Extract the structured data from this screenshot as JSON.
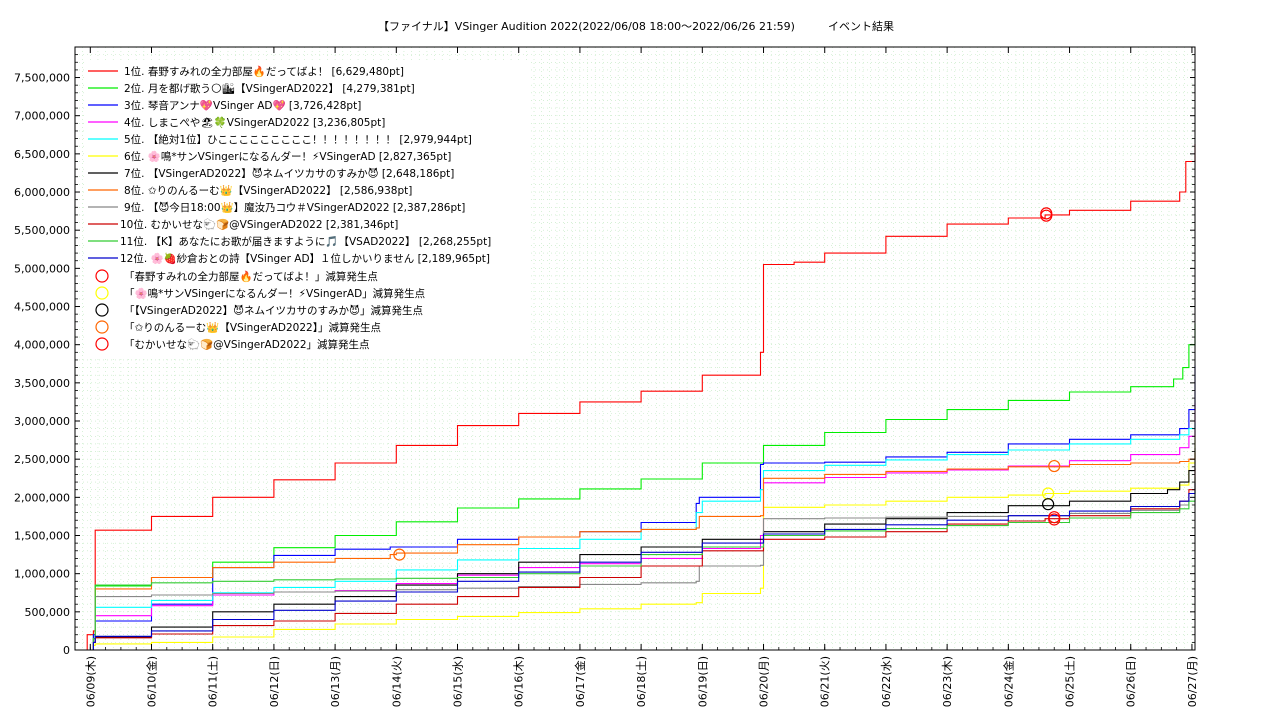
{
  "chart_data": {
    "type": "line",
    "title": "【ファイナル】VSinger Audition 2022(2022/06/08 18:00～2022/06/26 21:59)　　　イベント結果",
    "xlabel": "",
    "ylabel": "",
    "x_ticks": [
      "06/09(木)",
      "06/10(金)",
      "06/11(土)",
      "06/12(日)",
      "06/13(月)",
      "06/14(火)",
      "06/15(水)",
      "06/16(木)",
      "06/17(金)",
      "06/18(土)",
      "06/19(日)",
      "06/20(月)",
      "06/21(火)",
      "06/22(水)",
      "06/23(木)",
      "06/24(金)",
      "06/25(土)",
      "06/26(日)",
      "06/27(月)"
    ],
    "xlim": [
      -0.25,
      18.05
    ],
    "ylim": [
      0,
      7900000
    ],
    "y_ticks": [
      {
        "value": 0,
        "label": "0"
      },
      {
        "value": 500000,
        "label": "500,000"
      },
      {
        "value": 1000000,
        "label": "1,000,000"
      },
      {
        "value": 1500000,
        "label": "1,500,000"
      },
      {
        "value": 2000000,
        "label": "2,000,000"
      },
      {
        "value": 2500000,
        "label": "2,500,000"
      },
      {
        "value": 3000000,
        "label": "3,000,000"
      },
      {
        "value": 3500000,
        "label": "3,500,000"
      },
      {
        "value": 4000000,
        "label": "4,000,000"
      },
      {
        "value": 4500000,
        "label": "4,500,000"
      },
      {
        "value": 5000000,
        "label": "5,000,000"
      },
      {
        "value": 5500000,
        "label": "5,500,000"
      },
      {
        "value": 6000000,
        "label": "6,000,000"
      },
      {
        "value": 6500000,
        "label": "6,500,000"
      },
      {
        "value": 7000000,
        "label": "7,000,000"
      },
      {
        "value": 7500000,
        "label": "7,500,000"
      }
    ],
    "grid": true,
    "legend_position": "top-left",
    "series": [
      {
        "name": "1位. 春野すみれの全力部屋🔥だってばよ！ [6,629,480pt]",
        "color": "#ff0000",
        "x": [
          -0.25,
          -0.05,
          0.05,
          0.08,
          1,
          2,
          3,
          4,
          5,
          6,
          7,
          8,
          9,
          10,
          10.95,
          11.0,
          11.5,
          12,
          13,
          14,
          15,
          15.6,
          16,
          17,
          17.8,
          17.9,
          18.05
        ],
        "y": [
          0,
          200000,
          250000,
          1570000,
          1750000,
          2000000,
          2230000,
          2450000,
          2680000,
          2940000,
          3100000,
          3250000,
          3390000,
          3600000,
          3900000,
          5050000,
          5080000,
          5200000,
          5420000,
          5580000,
          5660000,
          5700000,
          5760000,
          5880000,
          6000000,
          6400000,
          6629480
        ]
      },
      {
        "name": "2位. 月を都げ歌う🌕🏙【VSingerAD2022】 [4,279,381pt]",
        "color": "#00ee00",
        "x": [
          -0.25,
          0.05,
          0.08,
          1,
          2,
          3,
          4,
          5,
          6,
          7,
          8,
          9,
          10,
          11,
          12,
          13,
          14,
          15,
          16,
          17,
          17.7,
          17.85,
          17.95,
          18.05
        ],
        "y": [
          0,
          200000,
          840000,
          950000,
          1150000,
          1340000,
          1500000,
          1680000,
          1860000,
          1980000,
          2110000,
          2240000,
          2450000,
          2680000,
          2850000,
          3020000,
          3150000,
          3270000,
          3380000,
          3450000,
          3550000,
          3700000,
          4000000,
          4279381
        ]
      },
      {
        "name": "3位. 琴音アンナ💖VSinger AD💖 [3,726,428pt]",
        "color": "#0000ff",
        "x": [
          -0.25,
          0.05,
          0.08,
          1,
          2,
          3,
          4,
          4.9,
          5,
          6,
          7,
          8,
          9,
          9.9,
          9.95,
          10.95,
          11.0,
          12,
          13,
          14,
          15,
          16,
          17,
          17.8,
          17.95,
          18.05
        ],
        "y": [
          0,
          200000,
          380000,
          600000,
          1080000,
          1240000,
          1320000,
          1350000,
          1350000,
          1450000,
          1480000,
          1550000,
          1670000,
          1920000,
          2000000,
          2430000,
          2450000,
          2460000,
          2530000,
          2590000,
          2700000,
          2760000,
          2820000,
          2900000,
          3150000,
          3726428
        ]
      },
      {
        "name": "4位. しまこぺや🏖🍀VSingerAD2022 [3,236,805pt]",
        "color": "#ff00ff",
        "x": [
          -0.25,
          0.05,
          0.08,
          1,
          2,
          3,
          4,
          5,
          6,
          7,
          8,
          9,
          10,
          10.95,
          11.0,
          12,
          13,
          14,
          15,
          16,
          17,
          17.8,
          17.95,
          18.05
        ],
        "y": [
          0,
          150000,
          450000,
          580000,
          720000,
          760000,
          780000,
          870000,
          980000,
          1080000,
          1130000,
          1200000,
          1330000,
          1500000,
          2190000,
          2260000,
          2320000,
          2360000,
          2410000,
          2480000,
          2560000,
          2650000,
          2800000,
          3236805
        ]
      },
      {
        "name": "5位. 【絶対1位】ひこここここここここ！！！！！！！！ [2,979,944pt]",
        "color": "#00ffff",
        "x": [
          -0.25,
          0.05,
          0.08,
          1,
          2,
          3,
          4,
          5,
          6,
          7,
          8,
          9,
          9.9,
          10.0,
          10.95,
          11.0,
          12,
          13,
          14,
          15,
          16,
          17,
          17.8,
          17.95,
          18.05
        ],
        "y": [
          0,
          150000,
          560000,
          650000,
          750000,
          820000,
          900000,
          1050000,
          1180000,
          1330000,
          1450000,
          1580000,
          1800000,
          1950000,
          2100000,
          2350000,
          2420000,
          2490000,
          2560000,
          2620000,
          2700000,
          2760000,
          2820000,
          2900000,
          2979944
        ]
      },
      {
        "name": "6位. 🌸鳴*サンVSingerになるんダー！⚡VSingerAD [2,827,365pt]",
        "color": "#ffff00",
        "x": [
          -0.25,
          0.05,
          0.08,
          1,
          2,
          3,
          4,
          5,
          6,
          7,
          8,
          9,
          9.9,
          10.0,
          10.95,
          11.0,
          12,
          13,
          14,
          15,
          15.6,
          16,
          17,
          17.8,
          17.95,
          18.05
        ],
        "y": [
          0,
          60000,
          80000,
          100000,
          170000,
          270000,
          340000,
          400000,
          440000,
          490000,
          540000,
          600000,
          620000,
          740000,
          810000,
          1870000,
          1900000,
          1950000,
          2000000,
          2030000,
          2050000,
          2080000,
          2120000,
          2160000,
          2450000,
          2827365
        ]
      },
      {
        "name": "7位. 【VSingerAD2022】😈ネムイツカサのすみか😈 [2,648,186pt]",
        "color": "#000000",
        "x": [
          -0.25,
          0.05,
          0.08,
          1,
          2,
          3,
          4,
          5,
          6,
          7,
          8,
          9,
          10,
          11,
          12,
          13,
          14,
          15,
          16,
          17,
          17.6,
          17.8,
          17.95,
          18.05
        ],
        "y": [
          0,
          100000,
          170000,
          300000,
          500000,
          600000,
          700000,
          850000,
          1000000,
          1150000,
          1250000,
          1350000,
          1450000,
          1550000,
          1650000,
          1720000,
          1800000,
          1890000,
          1950000,
          2050000,
          2100000,
          2200000,
          2350000,
          2648186
        ]
      },
      {
        "name": "8位. ✩りのんるーむ👑【VSingerAD2022】 [2,586,938pt]",
        "color": "#ff6600",
        "x": [
          -0.25,
          0.05,
          0.08,
          1,
          2,
          3,
          4,
          4.9,
          5,
          6,
          7,
          8,
          9,
          9.9,
          9.95,
          10.95,
          11.0,
          12,
          13,
          14,
          15,
          16,
          17,
          17.8,
          17.95,
          18.05
        ],
        "y": [
          0,
          150000,
          800000,
          950000,
          1080000,
          1150000,
          1200000,
          1250000,
          1270000,
          1380000,
          1480000,
          1550000,
          1580000,
          1600000,
          1750000,
          1760000,
          2250000,
          2300000,
          2340000,
          2370000,
          2400000,
          2430000,
          2450000,
          2470000,
          2500000,
          2586938
        ]
      },
      {
        "name": "9位. 【😈今日18:00👑】魔汝乃コウ＃VSingerAD2022 [2,387,286pt]",
        "color": "#888888",
        "x": [
          -0.25,
          0.05,
          0.08,
          1,
          2,
          3,
          4,
          5,
          6,
          7,
          8,
          9,
          9.9,
          9.95,
          10.95,
          11.0,
          12,
          13,
          14,
          15,
          16,
          17,
          17.8,
          17.95,
          18.05
        ],
        "y": [
          0,
          150000,
          700000,
          720000,
          740000,
          760000,
          770000,
          790000,
          810000,
          830000,
          860000,
          880000,
          900000,
          1100000,
          1110000,
          1720000,
          1730000,
          1740000,
          1750000,
          1760000,
          1790000,
          1830000,
          1900000,
          2050000,
          2387286
        ]
      },
      {
        "name": "10位. むかいせな🐑🍞@VSingerAD2022 [2,381,346pt]",
        "color": "#cc0000",
        "x": [
          -0.25,
          0.05,
          0.08,
          1,
          2,
          3,
          4,
          5,
          6,
          7,
          8,
          9,
          10,
          11,
          12,
          13,
          14,
          15,
          15.6,
          16,
          17,
          17.8,
          17.95,
          18.05
        ],
        "y": [
          0,
          100000,
          160000,
          210000,
          320000,
          380000,
          480000,
          600000,
          700000,
          820000,
          950000,
          1100000,
          1300000,
          1450000,
          1480000,
          1550000,
          1650000,
          1690000,
          1720000,
          1760000,
          1850000,
          1950000,
          2100000,
          2381346
        ]
      },
      {
        "name": "11位. 【K】あなたにお歌が届きますように🎵【VSAD2022】 [2,268,255pt]",
        "color": "#33cc33",
        "x": [
          -0.25,
          0.05,
          0.08,
          1,
          2,
          3,
          4,
          5,
          6,
          7,
          8,
          9,
          10,
          11,
          12,
          13,
          14,
          15,
          16,
          17,
          17.8,
          17.95,
          18.05
        ],
        "y": [
          0,
          150000,
          850000,
          880000,
          900000,
          920000,
          930000,
          940000,
          950000,
          1000000,
          1100000,
          1250000,
          1350000,
          1500000,
          1560000,
          1590000,
          1630000,
          1670000,
          1730000,
          1800000,
          1850000,
          1950000,
          2268255
        ]
      },
      {
        "name": "12位. 🌸🍓紗倉おとの詩【VSinger AD】１位しかいりません [2,189,965pt]",
        "color": "#0000cc",
        "x": [
          -0.25,
          0.05,
          0.08,
          1,
          2,
          3,
          4,
          5,
          6,
          7,
          8,
          9,
          10,
          11,
          12,
          13,
          14,
          15,
          16,
          17,
          17.8,
          17.95,
          18.05
        ],
        "y": [
          0,
          100000,
          180000,
          250000,
          400000,
          520000,
          640000,
          760000,
          900000,
          1020000,
          1150000,
          1280000,
          1400000,
          1520000,
          1580000,
          1640000,
          1700000,
          1760000,
          1820000,
          1880000,
          1950000,
          2050000,
          2189965
        ]
      }
    ],
    "markers": [
      {
        "name": "「春野すみれの全力部屋🔥だってばよ！」減算発生点",
        "color": "#ff0000",
        "points": [
          {
            "x": 15.62,
            "y": 5720000
          },
          {
            "x": 15.62,
            "y": 5690000
          }
        ]
      },
      {
        "name": "「🌸鳴*サンVSingerになるんダー！⚡VSingerAD」減算発生点",
        "color": "#ffff00",
        "points": [
          {
            "x": 15.65,
            "y": 2050000
          }
        ]
      },
      {
        "name": "「【VSingerAD2022】😈ネムイツカサのすみか😈」減算発生点",
        "color": "#000000",
        "points": [
          {
            "x": 15.65,
            "y": 1910000
          }
        ]
      },
      {
        "name": "「✩りのんるーむ👑【VSingerAD2022】」減算発生点",
        "color": "#ff6600",
        "points": [
          {
            "x": 5.05,
            "y": 1250000
          },
          {
            "x": 15.75,
            "y": 2410000
          }
        ]
      },
      {
        "name": "「むかいせな🐑🍞@VSingerAD2022」減算発生点",
        "color": "#ff0000",
        "points": [
          {
            "x": 15.75,
            "y": 1710000
          },
          {
            "x": 15.75,
            "y": 1740000
          }
        ]
      }
    ]
  }
}
